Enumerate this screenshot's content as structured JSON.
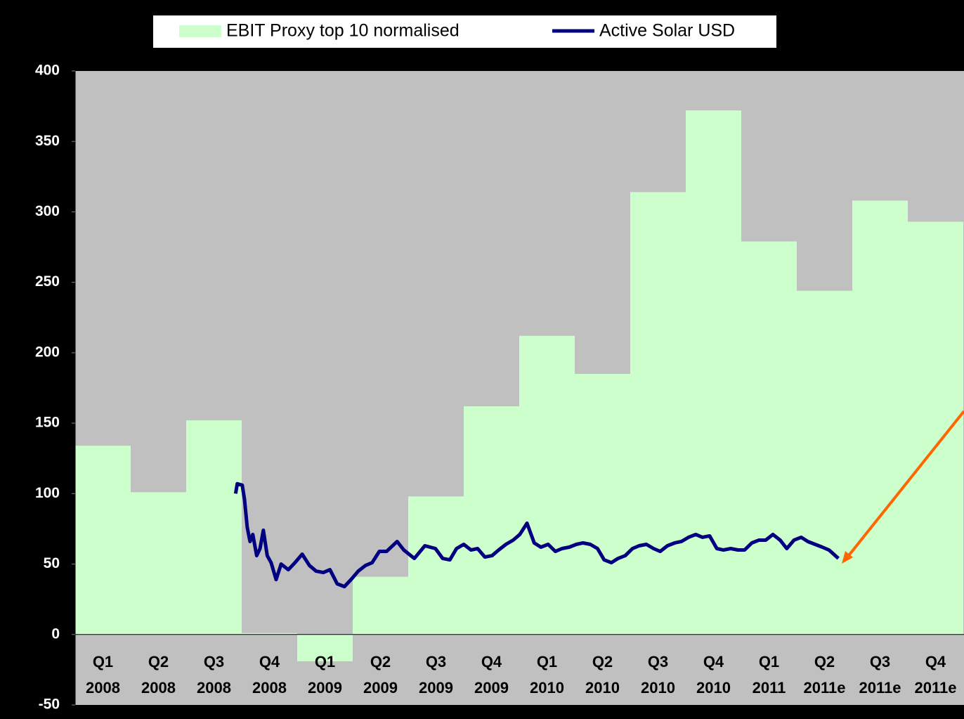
{
  "chart_data": {
    "type": "bar-line",
    "legend": "top",
    "categories": [
      [
        "Q1",
        "2008"
      ],
      [
        "Q2",
        "2008"
      ],
      [
        "Q3",
        "2008"
      ],
      [
        "Q4",
        "2008"
      ],
      [
        "Q1",
        "2009"
      ],
      [
        "Q2",
        "2009"
      ],
      [
        "Q3",
        "2009"
      ],
      [
        "Q4",
        "2009"
      ],
      [
        "Q1",
        "2010"
      ],
      [
        "Q2",
        "2010"
      ],
      [
        "Q3",
        "2010"
      ],
      [
        "Q4",
        "2010"
      ],
      [
        "Q1",
        "2011"
      ],
      [
        "Q2",
        "2011e"
      ],
      [
        "Q3",
        "2011e"
      ],
      [
        "Q4",
        "2011e"
      ]
    ],
    "xlim": [
      0,
      16
    ],
    "ylim": [
      -50,
      400
    ],
    "yticks": [
      -50,
      0,
      50,
      100,
      150,
      200,
      250,
      300,
      350,
      400
    ],
    "plot_color": "#c0c0c0",
    "series": [
      {
        "name": "EBIT Proxy top 10 normalised",
        "color": "#ccffcc",
        "kind": "bar",
        "values": [
          134,
          101,
          152,
          1,
          -19,
          41,
          98,
          162,
          212,
          185,
          314,
          372,
          279,
          244,
          308,
          293
        ]
      },
      {
        "name": "Active Solar USD",
        "color": "#000080",
        "kind": "line",
        "x": [
          2.89,
          2.92,
          3.01,
          3.05,
          3.1,
          3.15,
          3.2,
          3.27,
          3.33,
          3.39,
          3.46,
          3.53,
          3.62,
          3.71,
          3.84,
          3.96,
          4.09,
          4.22,
          4.34,
          4.47,
          4.59,
          4.72,
          4.85,
          4.97,
          5.1,
          5.23,
          5.35,
          5.48,
          5.61,
          5.8,
          5.92,
          6.11,
          6.3,
          6.49,
          6.62,
          6.75,
          6.87,
          7.0,
          7.13,
          7.25,
          7.38,
          7.51,
          7.63,
          7.76,
          7.89,
          8.01,
          8.14,
          8.27,
          8.39,
          8.52,
          8.65,
          8.77,
          8.9,
          9.03,
          9.15,
          9.28,
          9.41,
          9.53,
          9.66,
          9.78,
          9.91,
          10.04,
          10.16,
          10.29,
          10.42,
          10.54,
          10.67,
          10.8,
          10.92,
          11.05,
          11.18,
          11.3,
          11.43,
          11.56,
          11.68,
          11.81,
          11.94,
          12.06,
          12.19,
          12.32,
          12.44,
          12.57,
          12.7,
          12.82,
          12.95,
          13.08,
          13.2,
          13.33,
          13.46,
          13.58,
          13.75
        ],
        "values": [
          100,
          107,
          106,
          96,
          76,
          66,
          71,
          56,
          61,
          74,
          56,
          51,
          39,
          50,
          46,
          51,
          57,
          49,
          45,
          44,
          46,
          36,
          34,
          39,
          45,
          49,
          51,
          59,
          59,
          66,
          60,
          54,
          63,
          61,
          54,
          53,
          61,
          64,
          60,
          61,
          55,
          56,
          60,
          64,
          67,
          71,
          79,
          65,
          62,
          64,
          59,
          61,
          62,
          64,
          65,
          64,
          61,
          53,
          51,
          54,
          56,
          61,
          63,
          64,
          61,
          59,
          63,
          65,
          66,
          69,
          71,
          69,
          70,
          61,
          60,
          61,
          60,
          60,
          65,
          67,
          67,
          71,
          67,
          61,
          67,
          69,
          66,
          64,
          62,
          60,
          54
        ]
      }
    ]
  }
}
